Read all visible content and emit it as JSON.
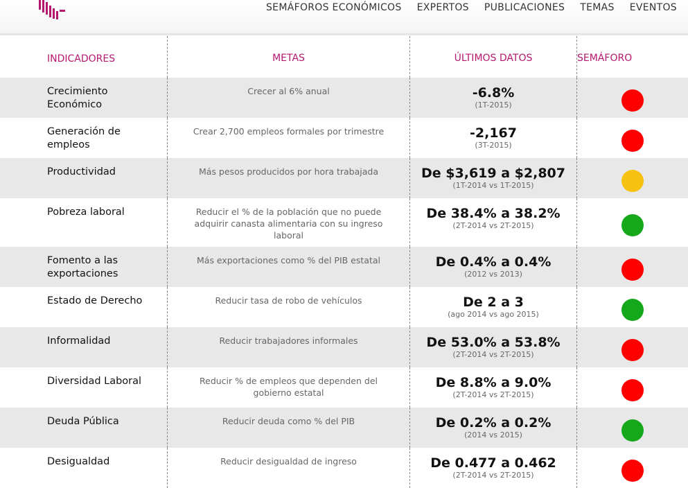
{
  "nav": [
    "SEMÁFOROS ECONÓMICOS",
    "EXPERTOS",
    "PUBLICACIONES",
    "TEMAS",
    "EVENTOS"
  ],
  "table": {
    "headers": [
      "INDICADORES",
      "METAS",
      "ÚLTIMOS DATOS",
      "SEMÁFORO"
    ],
    "rows": [
      {
        "indicator": "Crecimiento Económico",
        "goal": "Crecer al 6% anual",
        "value": "-6.8%",
        "period": "(1T-2015)",
        "color": "#ff0000"
      },
      {
        "indicator": "Generación de empleos",
        "goal": "Crear 2,700 empleos formales por trimestre",
        "value": "-2,167",
        "period": "(3T-2015)",
        "color": "#ff0000"
      },
      {
        "indicator": "Productividad",
        "goal": "Más pesos producidos por hora trabajada",
        "value": "De $3,619 a $2,807",
        "period": "(1T-2014 vs 1T-2015)",
        "color": "#f7c10f"
      },
      {
        "indicator": "Pobreza laboral",
        "goal": "Reducir el % de la población que no puede adquirir canasta alimentaria con su ingreso laboral",
        "value": "De 38.4% a 38.2%",
        "period": "(2T-2014 vs 2T-2015)",
        "color": "#14a81a"
      },
      {
        "indicator": "Fomento a las exportaciones",
        "goal": "Más exportaciones como % del PIB estatal",
        "value": "De 0.4% a 0.4%",
        "period": "(2012 vs 2013)",
        "color": "#ff0000"
      },
      {
        "indicator": "Estado de Derecho",
        "goal": "Reducir tasa de robo de vehículos",
        "value": "De 2 a 3",
        "period": "(ago 2014 vs ago 2015)",
        "color": "#14a81a"
      },
      {
        "indicator": "Informalidad",
        "goal": "Reducir trabajadores informales",
        "value": "De 53.0% a 53.8%",
        "period": "(2T-2014 vs 2T-2015)",
        "color": "#ff0000"
      },
      {
        "indicator": "Diversidad Laboral",
        "goal": "Reducir % de empleos que dependen del gobierno estatal",
        "value": "De 8.8% a 9.0%",
        "period": "(2T-2014 vs 2T-2015)",
        "color": "#ff0000"
      },
      {
        "indicator": "Deuda Pública",
        "goal": "Reducir deuda como % del PIB",
        "value": "De 0.2% a 0.2%",
        "period": "(2014 vs 2015)",
        "color": "#14a81a"
      },
      {
        "indicator": "Desigualdad",
        "goal": "Reducir desigualdad de ingreso",
        "value": "De 0.477 a 0.462",
        "period": "(2T-2014 vs 2T-2015)",
        "color": "#ff0000"
      }
    ]
  }
}
